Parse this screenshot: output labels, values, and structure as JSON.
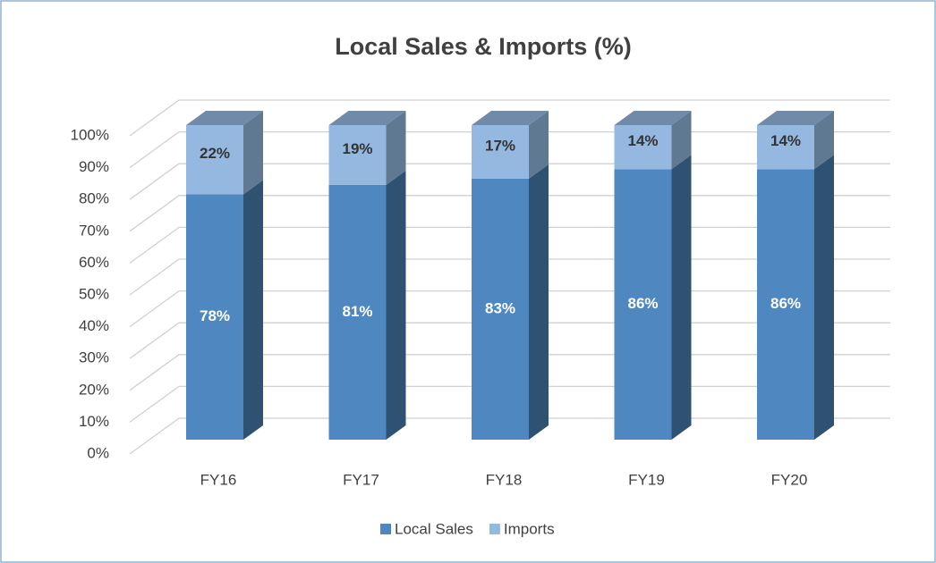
{
  "chart_data": {
    "type": "bar3d_stacked",
    "title": "Local Sales & Imports (%)",
    "categories": [
      "FY16",
      "FY17",
      "FY18",
      "FY19",
      "FY20"
    ],
    "series": [
      {
        "name": "Local Sales",
        "color": "#4f88c0",
        "values": [
          78,
          81,
          83,
          86,
          86
        ],
        "value_labels": [
          "78%",
          "81%",
          "83%",
          "86%",
          "86%"
        ]
      },
      {
        "name": "Imports",
        "color": "#95b8e0",
        "values": [
          22,
          19,
          17,
          14,
          14
        ],
        "value_labels": [
          "22%",
          "19%",
          "17%",
          "14%",
          "14%"
        ]
      }
    ],
    "ylim": [
      0,
      100
    ],
    "yticks": [
      {
        "value": 0,
        "label": "0%"
      },
      {
        "value": 10,
        "label": "10%"
      },
      {
        "value": 20,
        "label": "20%"
      },
      {
        "value": 30,
        "label": "30%"
      },
      {
        "value": 40,
        "label": "40%"
      },
      {
        "value": 50,
        "label": "50%"
      },
      {
        "value": 60,
        "label": "60%"
      },
      {
        "value": 70,
        "label": "70%"
      },
      {
        "value": 80,
        "label": "80%"
      },
      {
        "value": 90,
        "label": "90%"
      },
      {
        "value": 100,
        "label": "100%"
      }
    ],
    "grid": true,
    "legend": "bottom"
  }
}
